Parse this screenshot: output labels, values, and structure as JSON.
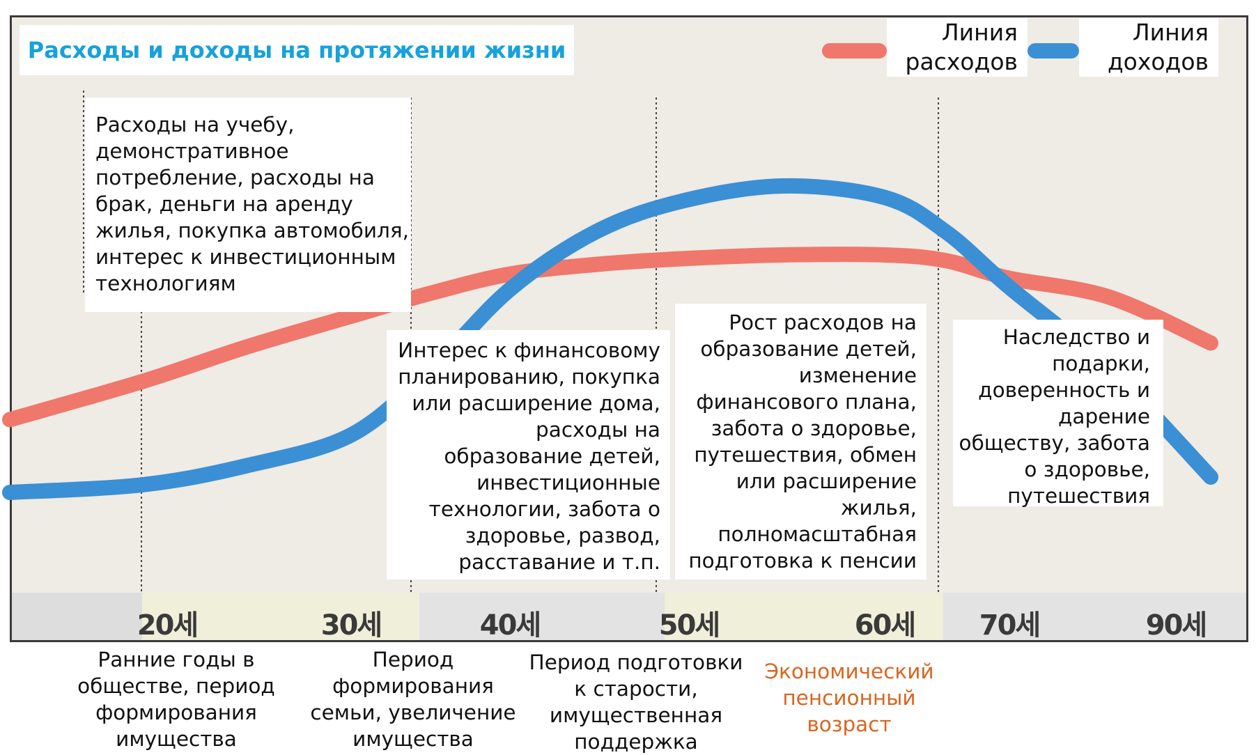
{
  "chart_data": {
    "type": "line",
    "title": "Расходы и доходы на протяжении жизни",
    "x_ticks": [
      "20세",
      "30세",
      "40세",
      "50세",
      "60세",
      "70세",
      "90세"
    ],
    "series": [
      {
        "name": "Линия расходов",
        "color": "#f0776b",
        "values": [
          {
            "x": 15,
            "y": 0.25
          },
          {
            "x": 20,
            "y": 0.35
          },
          {
            "x": 25,
            "y": 0.44
          },
          {
            "x": 30,
            "y": 0.52
          },
          {
            "x": 35,
            "y": 0.58
          },
          {
            "x": 40,
            "y": 0.63
          },
          {
            "x": 45,
            "y": 0.655
          },
          {
            "x": 50,
            "y": 0.67
          },
          {
            "x": 55,
            "y": 0.68
          },
          {
            "x": 60,
            "y": 0.68
          },
          {
            "x": 65,
            "y": 0.665
          },
          {
            "x": 70,
            "y": 0.62
          },
          {
            "x": 80,
            "y": 0.57
          },
          {
            "x": 90,
            "y": 0.45
          }
        ]
      },
      {
        "name": "Линия доходов",
        "color": "#3b8fd4",
        "values": [
          {
            "x": 15,
            "y": 0.06
          },
          {
            "x": 20,
            "y": 0.08
          },
          {
            "x": 25,
            "y": 0.13
          },
          {
            "x": 30,
            "y": 0.21
          },
          {
            "x": 35,
            "y": 0.38
          },
          {
            "x": 40,
            "y": 0.59
          },
          {
            "x": 45,
            "y": 0.74
          },
          {
            "x": 50,
            "y": 0.82
          },
          {
            "x": 55,
            "y": 0.86
          },
          {
            "x": 60,
            "y": 0.83
          },
          {
            "x": 65,
            "y": 0.74
          },
          {
            "x": 70,
            "y": 0.6
          },
          {
            "x": 80,
            "y": 0.38
          },
          {
            "x": 90,
            "y": 0.1
          }
        ]
      }
    ],
    "legend_position": "top-right",
    "grid": false
  },
  "legend": {
    "expense_label": "Линия\nрасходов",
    "income_label": "Линия\nдоходов"
  },
  "notes": {
    "note1": [
      "Расходы на учебу,",
      "демонстративное",
      "потребление, расходы на",
      "брак, деньги на аренду",
      "жилья, покупка автомобиля,",
      "интерес к инвестиционным",
      "технологиям"
    ],
    "note2": [
      "Интерес к финансовому",
      "планированию, покупка",
      "или расширение дома,",
      "расходы на",
      "образование детей,",
      "инвестиционные",
      "технологии, забота о",
      "здоровье, развод,",
      "расставание и т.п."
    ],
    "note3": [
      "Рост расходов на",
      "образование детей,",
      "изменение",
      "финансового плана,",
      "забота о здоровье,",
      "путешествия, обмен",
      "или расширение",
      "жилья,",
      "полномасштабная",
      "подготовка к пенсии"
    ],
    "note4": [
      "Наследство и",
      "подарки,",
      "доверенность и",
      "дарение",
      "обществу, забота",
      "о здоровье,",
      "путешествия"
    ]
  },
  "stages": {
    "stage1": [
      "Ранние годы в",
      "обществе, период",
      "формирования",
      "имущества"
    ],
    "stage2": [
      "Период",
      "формирования",
      "семьи, увеличение",
      "имущества"
    ],
    "stage3": [
      "Период подготовки",
      "к старости,",
      "имущественная",
      "поддержка"
    ],
    "stage4": [
      "Экономический",
      "пенсионный",
      "возраст"
    ]
  },
  "colors": {
    "title": "#17a1dd",
    "expense_line": "#f0776b",
    "income_line": "#3b8fd4",
    "stage4_text": "#d9651f",
    "band_light": "#e4e2d8",
    "band_highlight": "#efefd2"
  }
}
